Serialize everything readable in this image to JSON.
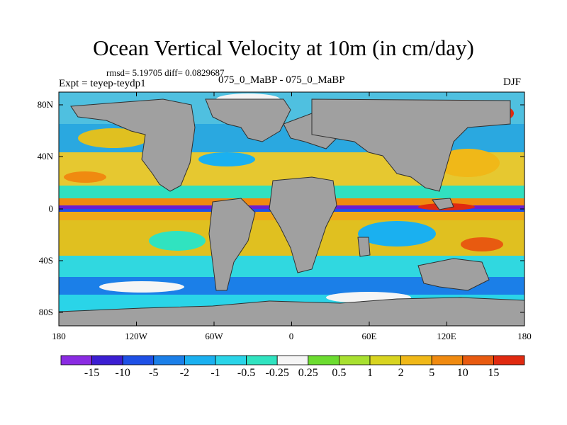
{
  "title": "Ocean Vertical Velocity at 10m (in cm/day)",
  "stats_line": "rmsd= 5.19705 diff= 0.0829687",
  "expt_line": "Expt = teyep-teydp1",
  "diff_line": "075_0_MaBP - 075_0_MaBP",
  "season": "DJF",
  "lat_ticks": [
    "80N",
    "40N",
    "0",
    "40S",
    "80S"
  ],
  "lon_ticks": [
    "180",
    "120W",
    "60W",
    "0",
    "60E",
    "120E",
    "180"
  ],
  "colorbar": {
    "labels": [
      "-15",
      "-10",
      "-5",
      "-2",
      "-1",
      "-0.5",
      "-0.25",
      "0.25",
      "0.5",
      "1",
      "2",
      "5",
      "10",
      "15"
    ],
    "colors": [
      "#8a2be2",
      "#3b1ed2",
      "#1e50e6",
      "#1b7fe8",
      "#1ab0f0",
      "#2ad4e8",
      "#30e3c0",
      "#f5f5f5",
      "#6cdc30",
      "#a8e030",
      "#d8d420",
      "#f0b818",
      "#f08a10",
      "#e85a10",
      "#e02a10"
    ]
  },
  "colors": {
    "land": "#a0a0a0",
    "coast": "#303030"
  }
}
